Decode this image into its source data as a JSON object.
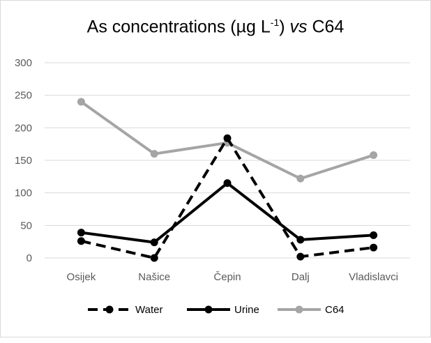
{
  "chart_data": {
    "type": "line",
    "title_parts": {
      "pre": "As concentrations (µg L",
      "sup": "-1",
      "post": ")  ",
      "vs": "vs",
      "tail": " C64"
    },
    "categories": [
      "Osijek",
      "Našice",
      "Čepin",
      "Dalj",
      "Vladislavci"
    ],
    "ylim": [
      0,
      300
    ],
    "yticks": [
      0,
      50,
      100,
      150,
      200,
      250,
      300
    ],
    "grid": true,
    "legend_position": "bottom",
    "series": [
      {
        "name": "Water",
        "values": [
          26,
          0,
          184,
          2,
          16
        ],
        "color": "#000000",
        "style": "dashed"
      },
      {
        "name": "Urine",
        "values": [
          39,
          24,
          115,
          28,
          35
        ],
        "color": "#000000",
        "style": "solid"
      },
      {
        "name": "C64",
        "values": [
          240,
          160,
          177,
          122,
          158
        ],
        "color": "#a5a5a5",
        "style": "solid"
      }
    ]
  }
}
